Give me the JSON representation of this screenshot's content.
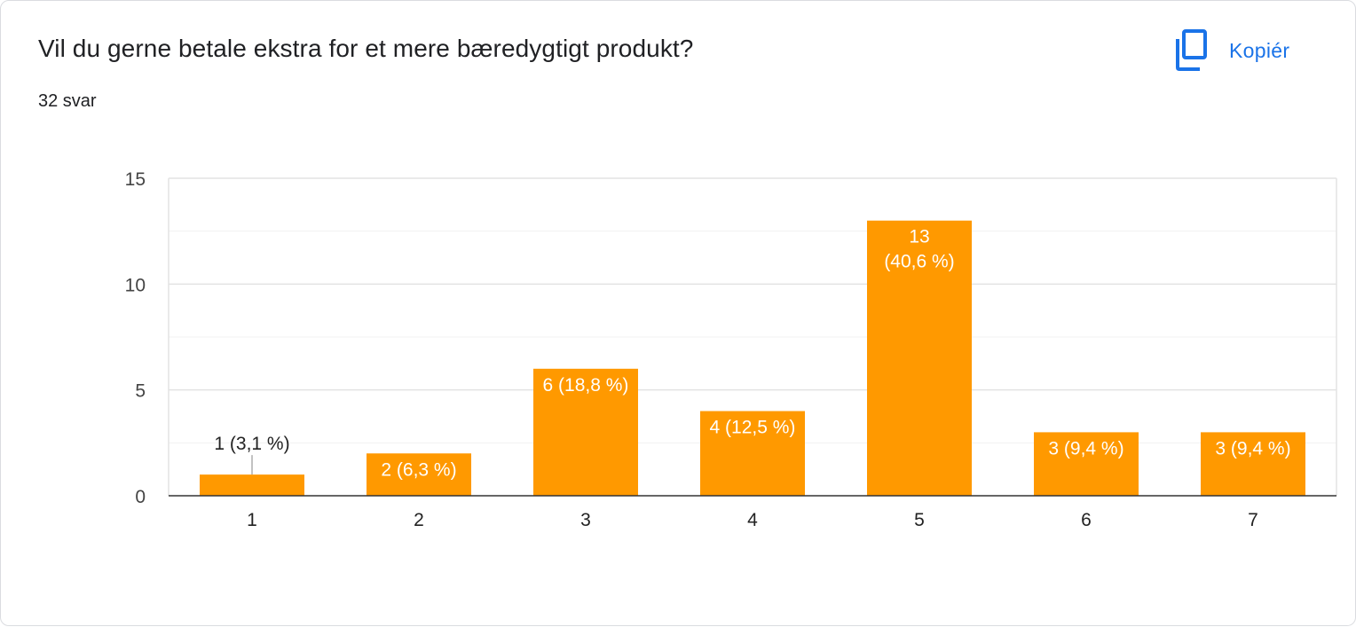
{
  "question": {
    "title": "Vil du gerne betale ekstra for et mere bæredygtigt produkt?",
    "response_count": "32 svar"
  },
  "toolbar": {
    "copy_label": "Kopiér",
    "copy_icon": "copy-icon",
    "accent_color": "#1a73e8"
  },
  "chart_data": {
    "type": "bar",
    "categories": [
      "1",
      "2",
      "3",
      "4",
      "5",
      "6",
      "7"
    ],
    "values": [
      1,
      2,
      6,
      4,
      13,
      3,
      3
    ],
    "data_labels": [
      "1 (3,1 %)",
      "2 (6,3 %)",
      "6 (18,8 %)",
      "4 (12,5 %)",
      [
        "13",
        "(40,6 %)"
      ],
      "3 (9,4 %)",
      "3 (9,4 %)"
    ],
    "yticks": [
      "0",
      "5",
      "10",
      "15"
    ],
    "ylim": [
      0,
      15
    ],
    "minor_gridlines": [
      2.5,
      7.5,
      12.5
    ],
    "grid": true,
    "legend": "none",
    "bar_color": "#ff9900",
    "title": "",
    "xlabel": "",
    "ylabel": ""
  }
}
